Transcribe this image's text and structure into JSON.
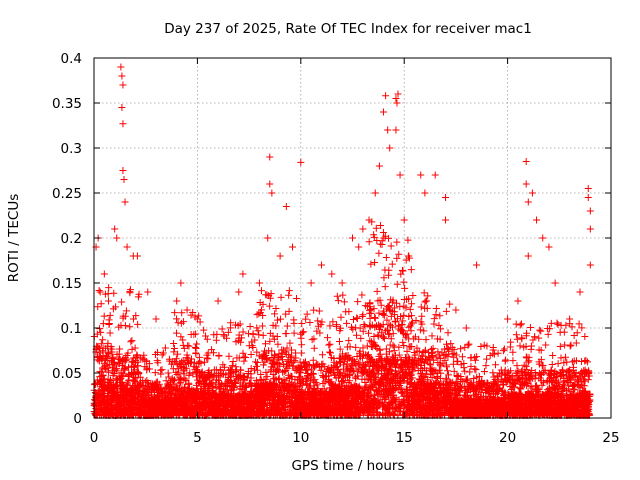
{
  "chart_data": {
    "type": "scatter",
    "title": "Day 237 of 2025, Rate Of TEC Index for receiver mac1",
    "xlabel": "GPS time / hours",
    "ylabel": "ROTI / TECUs",
    "xlim": [
      0,
      25
    ],
    "ylim": [
      0,
      0.4
    ],
    "xticks": [
      0,
      5,
      10,
      15,
      20,
      25
    ],
    "yticks": [
      0,
      0.05,
      0.1,
      0.15,
      0.2,
      0.25,
      0.3,
      0.35,
      0.4
    ],
    "xtick_labels": [
      "0",
      "5",
      "10",
      "15",
      "20",
      "25"
    ],
    "ytick_labels": [
      "0",
      "0.05",
      "0.1",
      "0.15",
      "0.2",
      "0.25",
      "0.3",
      "0.35",
      "0.4"
    ],
    "grid": true,
    "marker": "+",
    "marker_color": "#ff0000",
    "series": [
      {
        "name": "ROTI",
        "description": "dense cloud of ROTI samples, baseline mostly below 0.05 with activity clusters",
        "sample_points": [
          [
            0.1,
            0.19
          ],
          [
            0.2,
            0.2
          ],
          [
            0.3,
            0.14
          ],
          [
            0.5,
            0.16
          ],
          [
            0.7,
            0.13
          ],
          [
            1.0,
            0.21
          ],
          [
            1.1,
            0.2
          ],
          [
            1.3,
            0.39
          ],
          [
            1.35,
            0.38
          ],
          [
            1.4,
            0.37
          ],
          [
            1.35,
            0.345
          ],
          [
            1.4,
            0.327
          ],
          [
            1.4,
            0.275
          ],
          [
            1.45,
            0.265
          ],
          [
            1.5,
            0.24
          ],
          [
            1.6,
            0.19
          ],
          [
            1.9,
            0.18
          ],
          [
            2.1,
            0.18
          ],
          [
            2.6,
            0.14
          ],
          [
            3.0,
            0.11
          ],
          [
            4.0,
            0.13
          ],
          [
            4.2,
            0.15
          ],
          [
            4.5,
            0.12
          ],
          [
            5.0,
            0.11
          ],
          [
            6.0,
            0.13
          ],
          [
            7.0,
            0.14
          ],
          [
            7.2,
            0.16
          ],
          [
            8.0,
            0.15
          ],
          [
            8.4,
            0.2
          ],
          [
            8.5,
            0.29
          ],
          [
            8.5,
            0.26
          ],
          [
            8.6,
            0.25
          ],
          [
            9.0,
            0.18
          ],
          [
            9.3,
            0.235
          ],
          [
            9.6,
            0.19
          ],
          [
            10.0,
            0.284
          ],
          [
            10.5,
            0.15
          ],
          [
            11.0,
            0.17
          ],
          [
            11.5,
            0.16
          ],
          [
            12.0,
            0.15
          ],
          [
            12.5,
            0.2
          ],
          [
            12.8,
            0.19
          ],
          [
            13.0,
            0.21
          ],
          [
            13.3,
            0.22
          ],
          [
            13.6,
            0.25
          ],
          [
            13.8,
            0.28
          ],
          [
            14.0,
            0.34
          ],
          [
            14.1,
            0.358
          ],
          [
            14.2,
            0.32
          ],
          [
            14.3,
            0.3
          ],
          [
            14.6,
            0.355
          ],
          [
            14.65,
            0.35
          ],
          [
            14.7,
            0.36
          ],
          [
            14.6,
            0.32
          ],
          [
            14.8,
            0.27
          ],
          [
            15.0,
            0.22
          ],
          [
            15.2,
            0.18
          ],
          [
            15.8,
            0.27
          ],
          [
            16.0,
            0.25
          ],
          [
            16.5,
            0.27
          ],
          [
            17.0,
            0.245
          ],
          [
            17.0,
            0.22
          ],
          [
            17.5,
            0.12
          ],
          [
            18.0,
            0.1
          ],
          [
            18.5,
            0.17
          ],
          [
            19.0,
            0.08
          ],
          [
            20.0,
            0.11
          ],
          [
            20.5,
            0.13
          ],
          [
            20.9,
            0.285
          ],
          [
            20.9,
            0.26
          ],
          [
            21.0,
            0.24
          ],
          [
            21.0,
            0.18
          ],
          [
            21.2,
            0.25
          ],
          [
            21.4,
            0.22
          ],
          [
            21.7,
            0.2
          ],
          [
            22.0,
            0.19
          ],
          [
            22.3,
            0.15
          ],
          [
            23.0,
            0.11
          ],
          [
            23.5,
            0.14
          ],
          [
            23.9,
            0.255
          ],
          [
            23.9,
            0.245
          ],
          [
            24.0,
            0.23
          ],
          [
            24.0,
            0.21
          ],
          [
            24.0,
            0.17
          ]
        ],
        "clusters": [
          {
            "t0": 0.0,
            "t1": 0.9,
            "level": 0.07,
            "spread": 0.09
          },
          {
            "t0": 0.9,
            "t1": 2.2,
            "level": 0.06,
            "spread": 0.1
          },
          {
            "t0": 2.2,
            "t1": 3.9,
            "level": 0.035,
            "spread": 0.055
          },
          {
            "t0": 3.9,
            "t1": 5.2,
            "level": 0.055,
            "spread": 0.075
          },
          {
            "t0": 5.2,
            "t1": 7.8,
            "level": 0.045,
            "spread": 0.07
          },
          {
            "t0": 7.8,
            "t1": 9.8,
            "level": 0.065,
            "spread": 0.09
          },
          {
            "t0": 9.8,
            "t1": 11.5,
            "level": 0.05,
            "spread": 0.08
          },
          {
            "t0": 11.5,
            "t1": 13.3,
            "level": 0.06,
            "spread": 0.09
          },
          {
            "t0": 13.3,
            "t1": 15.4,
            "level": 0.11,
            "spread": 0.13
          },
          {
            "t0": 15.4,
            "t1": 17.2,
            "level": 0.065,
            "spread": 0.09
          },
          {
            "t0": 17.2,
            "t1": 19.8,
            "level": 0.035,
            "spread": 0.055
          },
          {
            "t0": 19.8,
            "t1": 22.5,
            "level": 0.045,
            "spread": 0.07
          },
          {
            "t0": 22.5,
            "t1": 24.0,
            "level": 0.045,
            "spread": 0.07
          }
        ]
      }
    ]
  }
}
